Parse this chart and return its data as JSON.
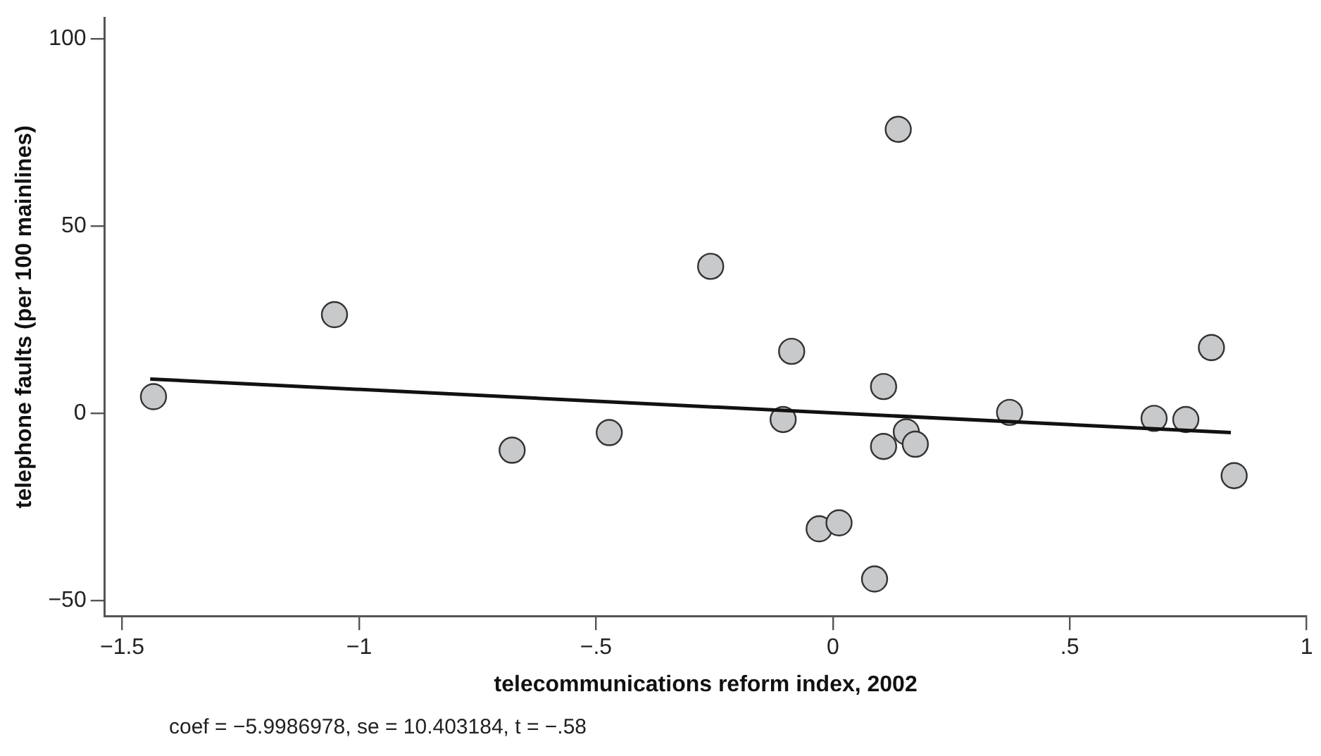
{
  "chart_data": {
    "type": "scatter",
    "xlabel": "telecommunications reform index, 2002",
    "ylabel": "telephone faults (per 100 mainlines)",
    "xlim": [
      -1.537,
      1
    ],
    "ylim": [
      -54.2,
      105.6
    ],
    "xticks": [
      {
        "value": -1.5,
        "label": "−1.5"
      },
      {
        "value": -1,
        "label": "−1"
      },
      {
        "value": -0.5,
        "label": "−.5"
      },
      0,
      {
        "value": 0.5,
        "label": ".5"
      },
      1
    ],
    "yticks": [
      {
        "value": -50,
        "label": "−50"
      },
      0,
      50,
      100
    ],
    "series": [
      {
        "marker": "circle",
        "color": "#c8c9cb",
        "x": [
          -1.434,
          -1.052,
          -0.677,
          -0.472,
          -0.258,
          -0.087,
          -0.105,
          -0.029,
          0.013,
          0.088,
          0.138,
          0.107,
          0.107,
          0.155,
          0.174,
          0.373,
          0.678,
          0.745,
          0.799,
          0.847
        ],
        "values": [
          4.4,
          26.3,
          -9.9,
          -5.2,
          39.2,
          16.5,
          -1.7,
          -30.9,
          -29.3,
          -44.3,
          75.8,
          7.1,
          -8.9,
          -5.0,
          -8.3,
          0.2,
          -1.4,
          -1.7,
          17.5,
          -16.7
        ]
      },
      {
        "type": "line",
        "marker": "none",
        "color": "#111111",
        "x": [
          -1.441,
          0.84
        ],
        "values": [
          9.1,
          -5.2
        ]
      }
    ],
    "annotations": [
      "coef = −5.9986978, se = 10.403184, t = −.58"
    ]
  }
}
